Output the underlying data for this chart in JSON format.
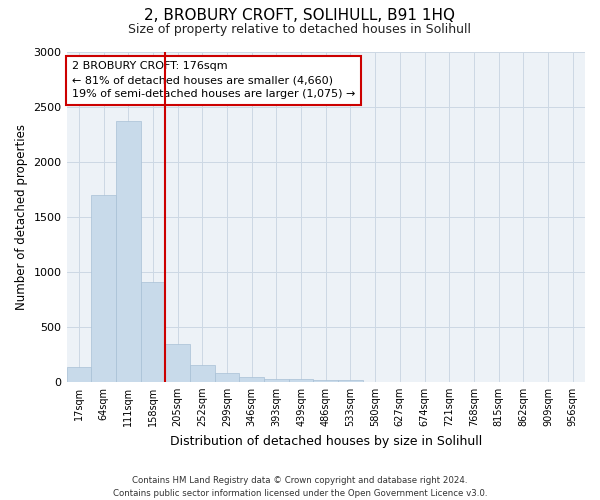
{
  "title": "2, BROBURY CROFT, SOLIHULL, B91 1HQ",
  "subtitle": "Size of property relative to detached houses in Solihull",
  "xlabel": "Distribution of detached houses by size in Solihull",
  "ylabel": "Number of detached properties",
  "categories": [
    "17sqm",
    "64sqm",
    "111sqm",
    "158sqm",
    "205sqm",
    "252sqm",
    "299sqm",
    "346sqm",
    "393sqm",
    "439sqm",
    "486sqm",
    "533sqm",
    "580sqm",
    "627sqm",
    "674sqm",
    "721sqm",
    "768sqm",
    "815sqm",
    "862sqm",
    "909sqm",
    "956sqm"
  ],
  "values": [
    130,
    1700,
    2370,
    910,
    340,
    155,
    80,
    48,
    30,
    22,
    20,
    20,
    0,
    0,
    0,
    0,
    0,
    0,
    0,
    0,
    0
  ],
  "bar_color": "#c8daea",
  "bar_edge_color": "#a8c0d6",
  "red_line_index": 3,
  "annotation_title": "2 BROBURY CROFT: 176sqm",
  "annotation_line1": "← 81% of detached houses are smaller (4,660)",
  "annotation_line2": "19% of semi-detached houses are larger (1,075) →",
  "annotation_box_facecolor": "#ffffff",
  "annotation_box_edgecolor": "#cc0000",
  "ylim": [
    0,
    3000
  ],
  "yticks": [
    0,
    500,
    1000,
    1500,
    2000,
    2500,
    3000
  ],
  "footer1": "Contains HM Land Registry data © Crown copyright and database right 2024.",
  "footer2": "Contains public sector information licensed under the Open Government Licence v3.0.",
  "grid_color": "#ccd8e4",
  "plot_bg_color": "#edf2f7",
  "fig_bg_color": "#ffffff"
}
